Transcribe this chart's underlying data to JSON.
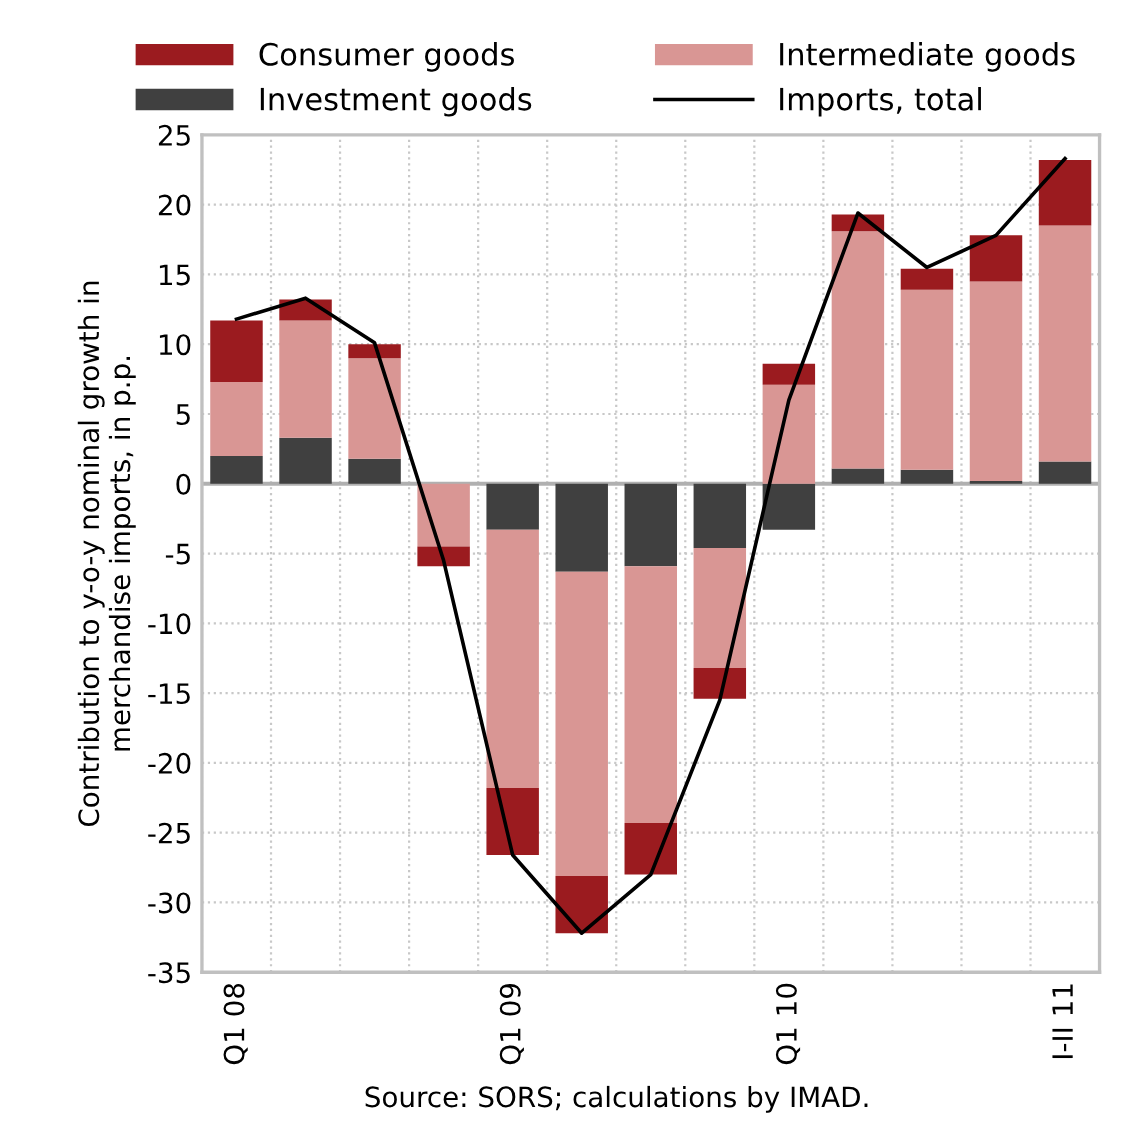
{
  "chart_data": {
    "type": "bar",
    "stacked": true,
    "categories": [
      "Q1 08",
      null,
      null,
      null,
      "Q1 09",
      null,
      null,
      null,
      "Q1 10",
      null,
      null,
      null,
      "I-II 11"
    ],
    "series": [
      {
        "name": "Investment goods",
        "color": "#404040",
        "values": [
          2.0,
          3.3,
          1.8,
          0,
          -3.3,
          -6.3,
          -5.9,
          -4.6,
          -3.3,
          1.1,
          1.0,
          0.2,
          1.6
        ]
      },
      {
        "name": "Intermediate goods",
        "color": "#d99694",
        "values": [
          5.3,
          8.4,
          7.2,
          -4.5,
          -18.5,
          -21.8,
          -18.4,
          -8.6,
          7.1,
          17.0,
          12.9,
          14.3,
          16.9
        ]
      },
      {
        "name": "Consumer goods",
        "color": "#9b1b1f",
        "values": [
          4.4,
          1.5,
          1.0,
          -1.4,
          -4.8,
          -4.1,
          -3.7,
          -2.2,
          1.5,
          1.2,
          1.5,
          3.3,
          4.7
        ]
      },
      {
        "name": "Imports, total",
        "type": "line",
        "color": "#000000",
        "values": [
          11.8,
          13.3,
          10.1,
          -5.5,
          -26.6,
          -32.2,
          -28.0,
          -15.5,
          6.0,
          19.4,
          15.5,
          17.8,
          23.3
        ]
      }
    ],
    "ylabel": "Contribution to y-o-y nominal growth in merchandise imports, in p.p.",
    "ylim": [
      -35,
      25
    ],
    "yticks": [
      -35,
      -30,
      -25,
      -20,
      -15,
      -10,
      -5,
      0,
      5,
      10,
      15,
      20,
      25
    ],
    "grid": true,
    "legend": "top",
    "annotations": [
      "Source: SORS; calculations by IMAD."
    ]
  }
}
